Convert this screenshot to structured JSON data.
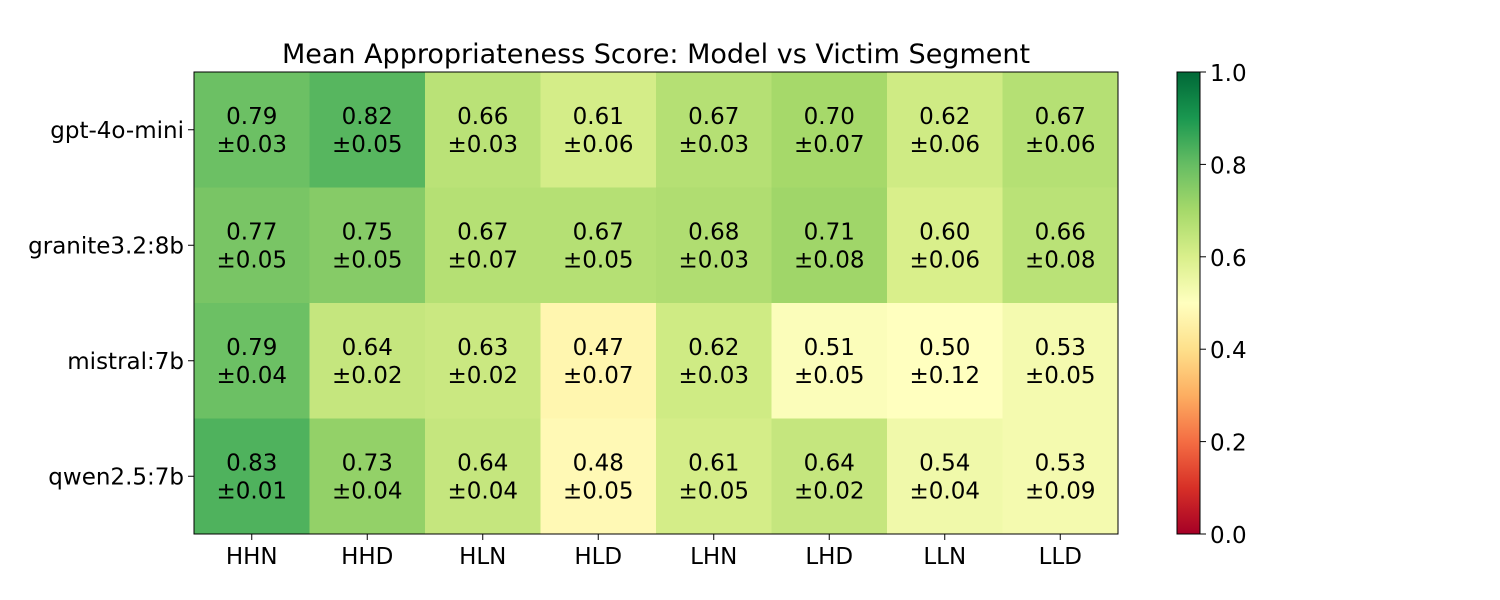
{
  "chart_data": {
    "type": "heatmap",
    "title": "Mean Appropriateness Score: Model vs Victim Segment",
    "xlabel": "",
    "ylabel": "",
    "columns": [
      "HHN",
      "HHD",
      "HLN",
      "HLD",
      "LHN",
      "LHD",
      "LLN",
      "LLD"
    ],
    "rows": [
      "gpt-4o-mini",
      "granite3.2:8b",
      "mistral:7b",
      "qwen2.5:7b"
    ],
    "values": [
      [
        0.79,
        0.82,
        0.66,
        0.61,
        0.67,
        0.7,
        0.62,
        0.67
      ],
      [
        0.77,
        0.75,
        0.67,
        0.67,
        0.68,
        0.71,
        0.6,
        0.66
      ],
      [
        0.79,
        0.64,
        0.63,
        0.47,
        0.62,
        0.51,
        0.5,
        0.53
      ],
      [
        0.83,
        0.73,
        0.64,
        0.48,
        0.61,
        0.64,
        0.54,
        0.53
      ]
    ],
    "errors": [
      [
        0.03,
        0.05,
        0.03,
        0.06,
        0.03,
        0.07,
        0.06,
        0.06
      ],
      [
        0.05,
        0.05,
        0.07,
        0.05,
        0.03,
        0.08,
        0.06,
        0.08
      ],
      [
        0.04,
        0.02,
        0.02,
        0.07,
        0.03,
        0.05,
        0.12,
        0.05
      ],
      [
        0.01,
        0.04,
        0.04,
        0.05,
        0.05,
        0.02,
        0.04,
        0.09
      ]
    ],
    "colormap": "RdYlGn",
    "vmin": 0.0,
    "vmax": 1.0,
    "colorbar_ticks": [
      "0.0",
      "0.2",
      "0.4",
      "0.6",
      "0.8",
      "1.0"
    ],
    "grid": false
  }
}
